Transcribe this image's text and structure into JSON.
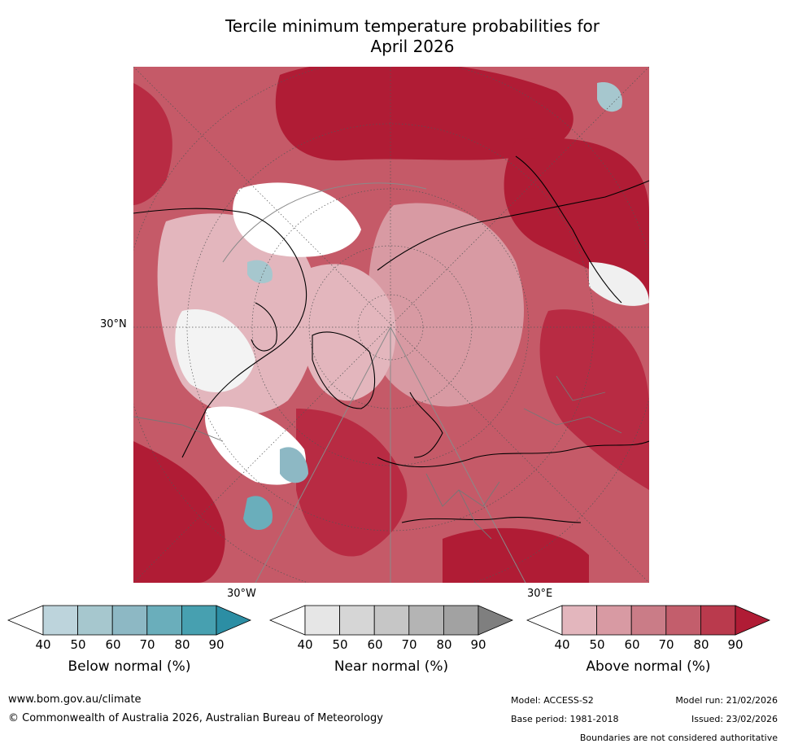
{
  "title": {
    "line1": "Tercile minimum temperature probabilities for",
    "line2": "April 2026"
  },
  "map": {
    "description_icon": "globe-icon",
    "lat_label": "30°N",
    "lon_label_left": "30°W",
    "lon_label_right": "30°E"
  },
  "colorbars": [
    {
      "label": "Below normal (%)",
      "ticks": [
        "40",
        "50",
        "60",
        "70",
        "80",
        "90"
      ],
      "colors": [
        "#bdd4dc",
        "#a6c7ce",
        "#8db8c4",
        "#6aaebb",
        "#47a0b0",
        "#2c8ea4"
      ]
    },
    {
      "label": "Near normal (%)",
      "ticks": [
        "40",
        "50",
        "60",
        "70",
        "80",
        "90"
      ],
      "colors": [
        "#e6e6e6",
        "#d6d6d6",
        "#c6c6c6",
        "#b4b4b4",
        "#a2a2a2",
        "#7f7f7f"
      ]
    },
    {
      "label": "Above normal (%)",
      "ticks": [
        "40",
        "50",
        "60",
        "70",
        "80",
        "90"
      ],
      "colors": [
        "#e3b6bd",
        "#d89aa3",
        "#ca7c87",
        "#c35e6c",
        "#ba3a4d",
        "#b01c35"
      ]
    }
  ],
  "footer": {
    "url": "www.bom.gov.au/climate",
    "copyright": "© Commonwealth of Australia 2026, Australian Bureau of Meteorology",
    "model": "Model: ACCESS-S2",
    "base_period": "Base period: 1981-2018",
    "model_run": "Model run: 21/02/2026",
    "issued": "Issued: 23/02/2026",
    "disclaimer": "Boundaries are not considered authoritative"
  }
}
